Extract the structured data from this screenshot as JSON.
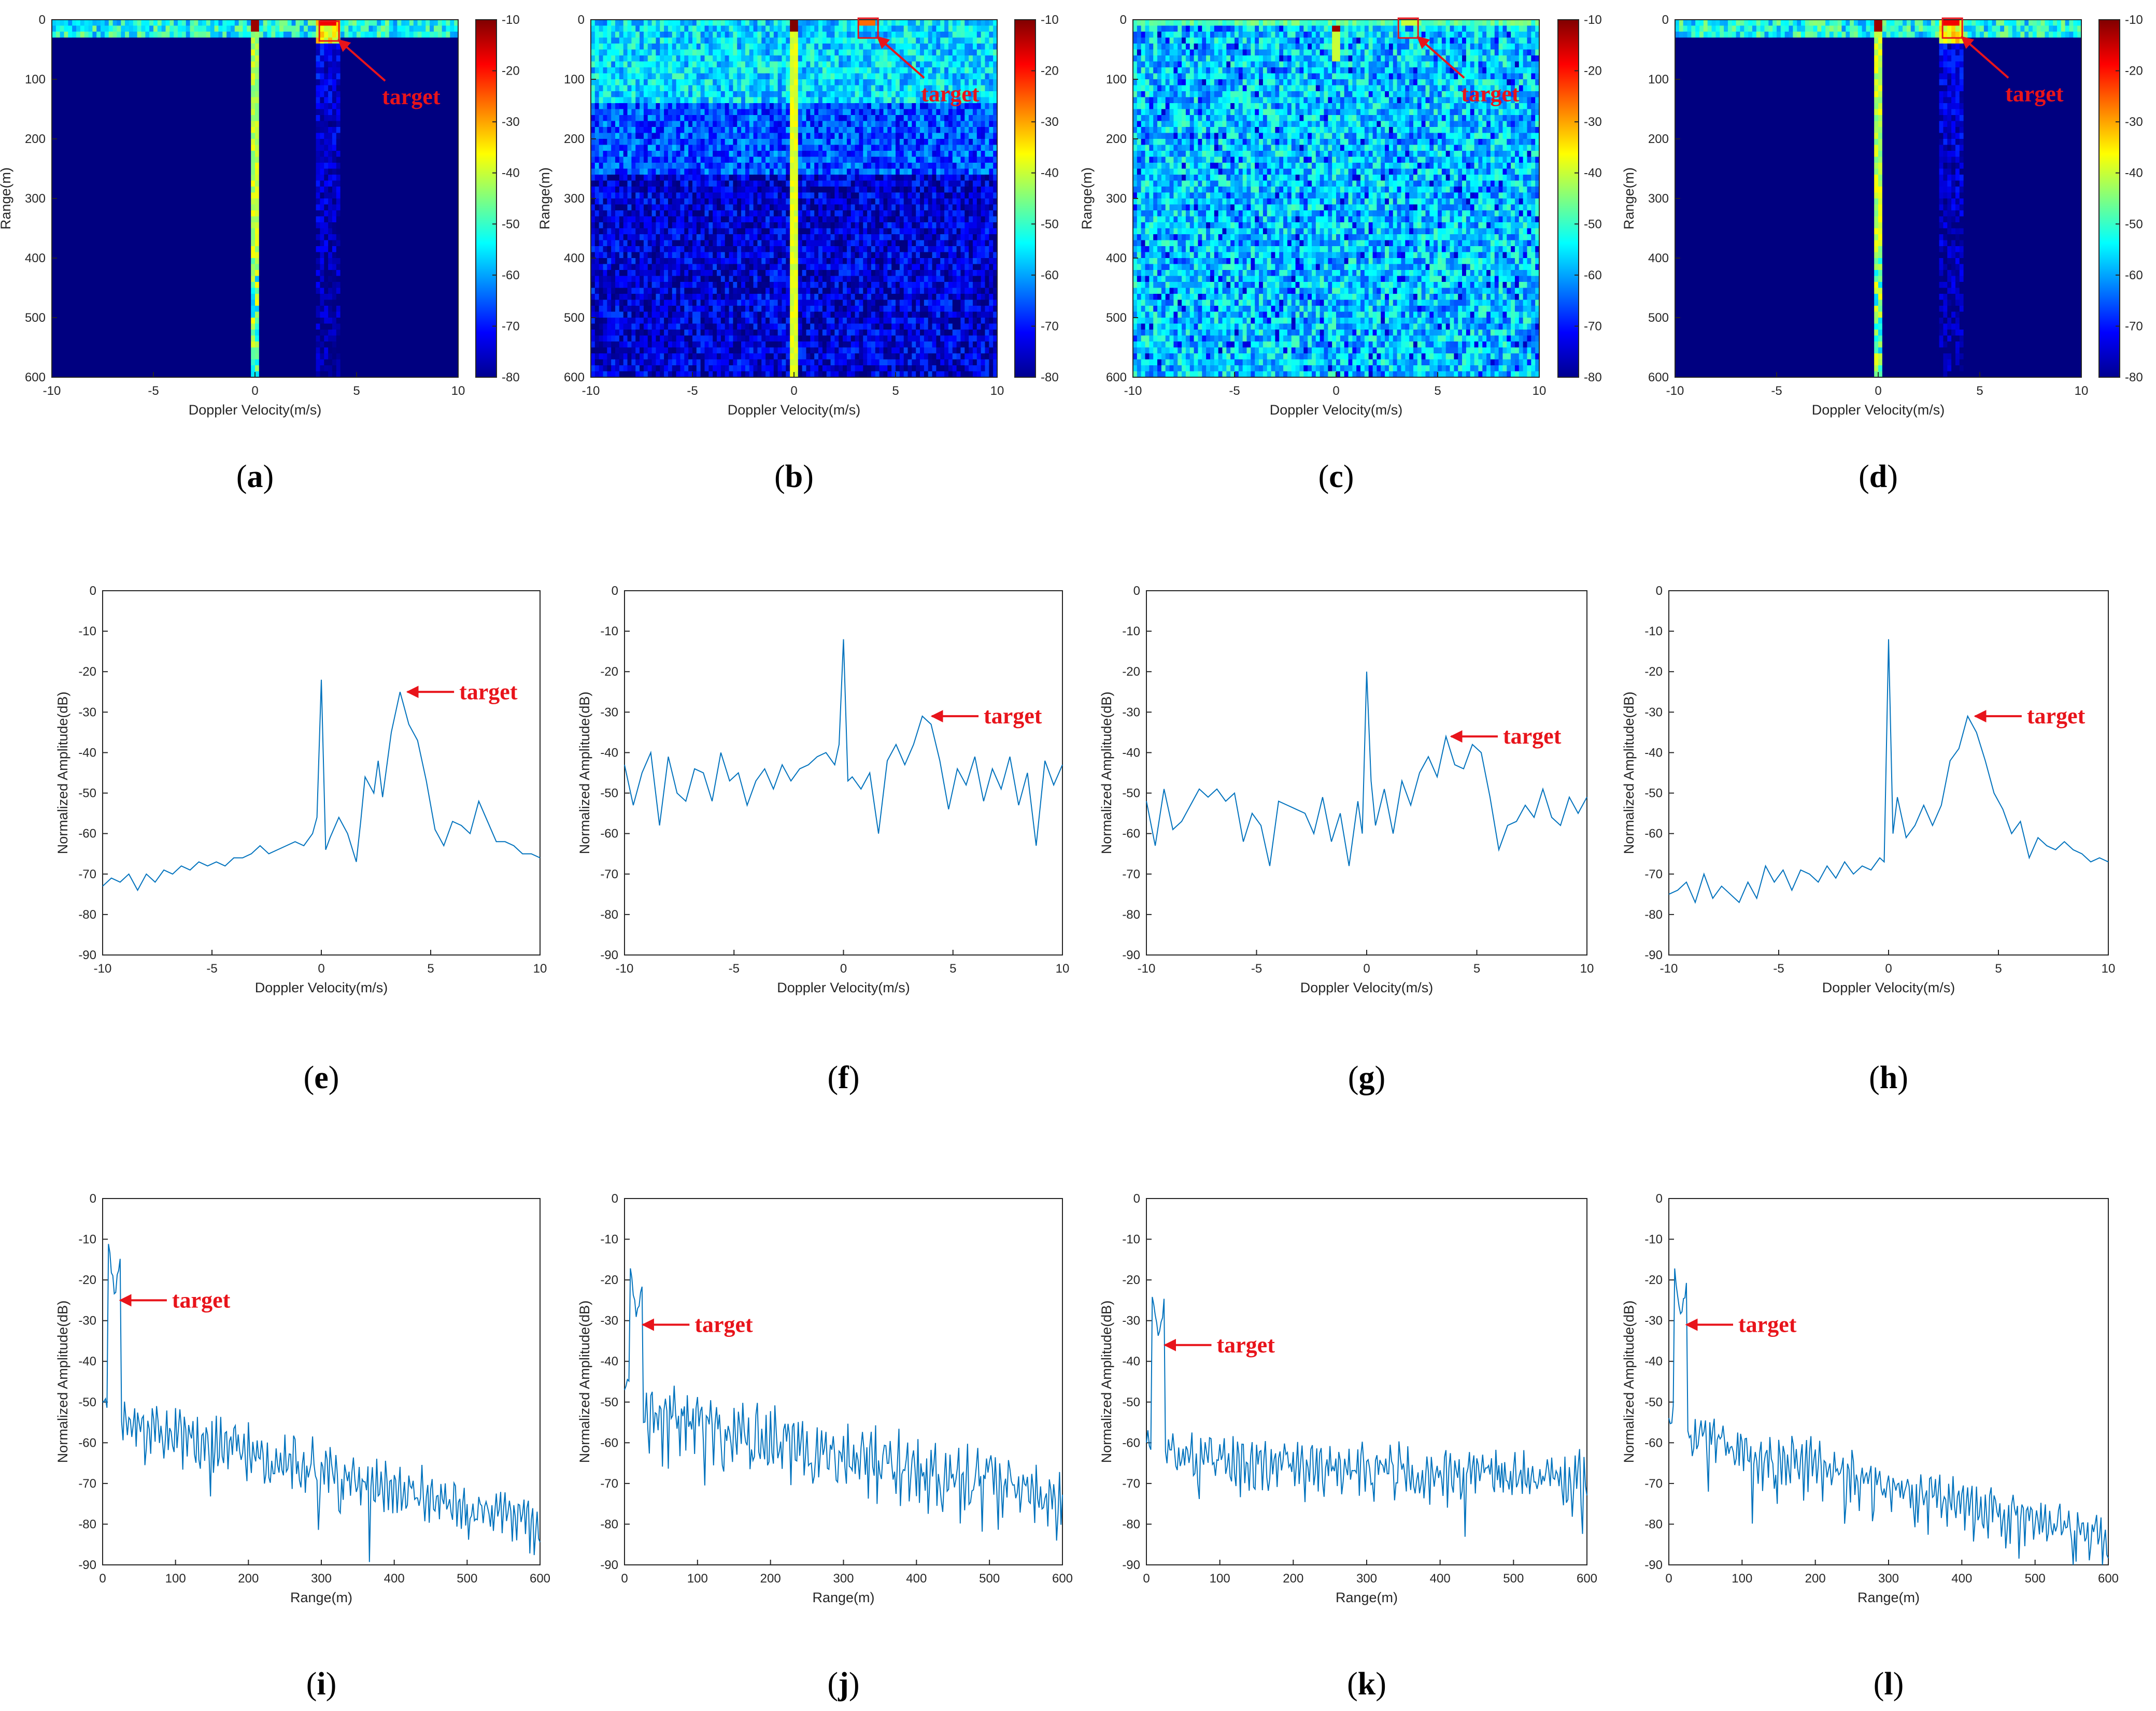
{
  "figure": {
    "target_label": "target",
    "colors": {
      "line": "#0072bd",
      "annotation": "#e8141b",
      "axes": "#262626",
      "background": "#ffffff"
    }
  },
  "chart_data": [
    {
      "id": "a",
      "type": "heatmap",
      "panel": "(a)",
      "caption_letter": "a",
      "variant": "clean",
      "xlabel": "Doppler Velocity(m/s)",
      "ylabel": "Range(m)",
      "xlim": [
        -10,
        10
      ],
      "ylim": [
        600,
        0
      ],
      "xticks": [
        -10,
        -5,
        0,
        5,
        10
      ],
      "yticks": [
        0,
        100,
        200,
        300,
        400,
        500,
        600
      ],
      "colorbar": {
        "ticks": [
          -10,
          -20,
          -30,
          -40,
          -50,
          -60,
          -70,
          -80
        ],
        "range": [
          -80,
          -10
        ]
      },
      "target": {
        "velocity": 3.6,
        "range": 20
      }
    },
    {
      "id": "b",
      "type": "heatmap",
      "panel": "(b)",
      "caption_letter": "b",
      "variant": "clutter",
      "xlabel": "Doppler Velocity(m/s)",
      "ylabel": "Range(m)",
      "xlim": [
        -10,
        10
      ],
      "ylim": [
        600,
        0
      ],
      "xticks": [
        -10,
        -5,
        0,
        5,
        10
      ],
      "yticks": [
        0,
        100,
        200,
        300,
        400,
        500,
        600
      ],
      "colorbar": {
        "ticks": [
          -10,
          -20,
          -30,
          -40,
          -50,
          -60,
          -70,
          -80
        ],
        "range": [
          -80,
          -10
        ]
      },
      "target": {
        "velocity": 3.6,
        "range": 15
      }
    },
    {
      "id": "c",
      "type": "heatmap",
      "panel": "(c)",
      "caption_letter": "c",
      "variant": "noise",
      "xlabel": "Doppler Velocity(m/s)",
      "ylabel": "Range(m)",
      "xlim": [
        -10,
        10
      ],
      "ylim": [
        600,
        0
      ],
      "xticks": [
        -10,
        -5,
        0,
        5,
        10
      ],
      "yticks": [
        0,
        100,
        200,
        300,
        400,
        500,
        600
      ],
      "colorbar": {
        "ticks": [
          -10,
          -20,
          -30,
          -40,
          -50,
          -60,
          -70,
          -80
        ],
        "range": [
          -80,
          -10
        ]
      },
      "target": {
        "velocity": 3.5,
        "range": 15
      }
    },
    {
      "id": "d",
      "type": "heatmap",
      "panel": "(d)",
      "caption_letter": "d",
      "variant": "clean",
      "xlabel": "Doppler Velocity(m/s)",
      "ylabel": "Range(m)",
      "xlim": [
        -10,
        10
      ],
      "ylim": [
        600,
        0
      ],
      "xticks": [
        -10,
        -5,
        0,
        5,
        10
      ],
      "yticks": [
        0,
        100,
        200,
        300,
        400,
        500,
        600
      ],
      "colorbar": {
        "ticks": [
          -10,
          -20,
          -30,
          -40,
          -50,
          -60,
          -70,
          -80
        ],
        "range": [
          -80,
          -10
        ]
      },
      "target": {
        "velocity": 3.6,
        "range": 15
      }
    },
    {
      "id": "e",
      "type": "line",
      "panel": "(e)",
      "caption_letter": "e",
      "xlabel": "Doppler Velocity(m/s)",
      "ylabel": "Normalized Amplitude(dB)",
      "xlim": [
        -10,
        10
      ],
      "ylim": [
        -90,
        0
      ],
      "xticks": [
        -10,
        -5,
        0,
        5,
        10
      ],
      "yticks": [
        0,
        -10,
        -20,
        -30,
        -40,
        -50,
        -60,
        -70,
        -80,
        -90
      ],
      "target": {
        "x": 3.7,
        "y": -25
      },
      "x": [
        -10,
        -9.6,
        -9.2,
        -8.8,
        -8.4,
        -8.0,
        -7.6,
        -7.2,
        -6.8,
        -6.4,
        -6.0,
        -5.6,
        -5.2,
        -4.8,
        -4.4,
        -4.0,
        -3.6,
        -3.2,
        -2.8,
        -2.4,
        -2.0,
        -1.6,
        -1.2,
        -0.8,
        -0.4,
        -0.2,
        0.0,
        0.2,
        0.4,
        0.8,
        1.2,
        1.6,
        1.8,
        2.0,
        2.4,
        2.6,
        2.8,
        3.2,
        3.6,
        3.8,
        4.0,
        4.4,
        4.8,
        5.2,
        5.6,
        6.0,
        6.4,
        6.8,
        7.2,
        7.6,
        8.0,
        8.4,
        8.8,
        9.2,
        9.6,
        10.0
      ],
      "y": [
        -73,
        -71,
        -72,
        -70,
        -74,
        -70,
        -72,
        -69,
        -70,
        -68,
        -69,
        -67,
        -68,
        -67,
        -68,
        -66,
        -66,
        -65,
        -63,
        -65,
        -64,
        -63,
        -62,
        -63,
        -60,
        -56,
        -22,
        -64,
        -61,
        -56,
        -60,
        -67,
        -57,
        -46,
        -50,
        -42,
        -51,
        -35,
        -25,
        -29,
        -33,
        -37,
        -47,
        -59,
        -63,
        -57,
        -58,
        -60,
        -52,
        -57,
        -62,
        -62,
        -63,
        -65,
        -65,
        -66
      ]
    },
    {
      "id": "f",
      "type": "line",
      "panel": "(f)",
      "caption_letter": "f",
      "xlabel": "Doppler Velocity(m/s)",
      "ylabel": "Normalized Amplitude(dB)",
      "xlim": [
        -10,
        10
      ],
      "ylim": [
        -90,
        0
      ],
      "xticks": [
        -10,
        -5,
        0,
        5,
        10
      ],
      "yticks": [
        0,
        -10,
        -20,
        -30,
        -40,
        -50,
        -60,
        -70,
        -80,
        -90
      ],
      "target": {
        "x": 3.8,
        "y": -31
      },
      "x": [
        -10,
        -9.6,
        -9.2,
        -8.8,
        -8.4,
        -8.0,
        -7.6,
        -7.2,
        -6.8,
        -6.4,
        -6.0,
        -5.6,
        -5.2,
        -4.8,
        -4.4,
        -4.0,
        -3.6,
        -3.2,
        -2.8,
        -2.4,
        -2.0,
        -1.6,
        -1.2,
        -0.8,
        -0.4,
        -0.2,
        0.0,
        0.2,
        0.4,
        0.8,
        1.2,
        1.6,
        2.0,
        2.4,
        2.8,
        3.2,
        3.6,
        4.0,
        4.4,
        4.8,
        5.2,
        5.6,
        6.0,
        6.4,
        6.8,
        7.2,
        7.6,
        8.0,
        8.4,
        8.8,
        9.2,
        9.6,
        10.0
      ],
      "y": [
        -43,
        -53,
        -45,
        -40,
        -58,
        -41,
        -50,
        -52,
        -44,
        -45,
        -52,
        -40,
        -47,
        -45,
        -53,
        -47,
        -44,
        -49,
        -43,
        -47,
        -44,
        -43,
        -41,
        -40,
        -43,
        -38,
        -12,
        -47,
        -46,
        -49,
        -45,
        -60,
        -42,
        -38,
        -43,
        -38,
        -31,
        -33,
        -42,
        -54,
        -44,
        -48,
        -41,
        -52,
        -44,
        -49,
        -41,
        -53,
        -45,
        -63,
        -42,
        -48,
        -43
      ]
    },
    {
      "id": "g",
      "type": "line",
      "panel": "(g)",
      "caption_letter": "g",
      "xlabel": "Doppler Velocity(m/s)",
      "ylabel": "Normalized Amplitude(dB)",
      "xlim": [
        -10,
        10
      ],
      "ylim": [
        -90,
        0
      ],
      "xticks": [
        -10,
        -5,
        0,
        5,
        10
      ],
      "yticks": [
        0,
        -10,
        -20,
        -30,
        -40,
        -50,
        -60,
        -70,
        -80,
        -90
      ],
      "target": {
        "x": 3.6,
        "y": -36
      },
      "x": [
        -10,
        -9.6,
        -9.2,
        -8.8,
        -8.4,
        -8.0,
        -7.6,
        -7.2,
        -6.8,
        -6.4,
        -6.0,
        -5.6,
        -5.2,
        -4.8,
        -4.4,
        -4.0,
        -3.6,
        -3.2,
        -2.8,
        -2.4,
        -2.0,
        -1.6,
        -1.2,
        -0.8,
        -0.4,
        -0.2,
        0.0,
        0.2,
        0.4,
        0.8,
        1.2,
        1.6,
        2.0,
        2.4,
        2.8,
        3.2,
        3.6,
        4.0,
        4.4,
        4.8,
        5.2,
        5.6,
        6.0,
        6.4,
        6.8,
        7.2,
        7.6,
        8.0,
        8.4,
        8.8,
        9.2,
        9.6,
        10.0
      ],
      "y": [
        -52,
        -63,
        -49,
        -59,
        -57,
        -53,
        -49,
        -51,
        -49,
        -52,
        -50,
        -62,
        -55,
        -58,
        -68,
        -52,
        -53,
        -54,
        -55,
        -60,
        -51,
        -62,
        -55,
        -68,
        -52,
        -60,
        -20,
        -47,
        -58,
        -49,
        -60,
        -47,
        -53,
        -45,
        -41,
        -46,
        -36,
        -43,
        -44,
        -38,
        -40,
        -51,
        -64,
        -58,
        -57,
        -53,
        -56,
        -49,
        -56,
        -58,
        -51,
        -55,
        -51
      ]
    },
    {
      "id": "h",
      "type": "line",
      "panel": "(h)",
      "caption_letter": "h",
      "xlabel": "Doppler Velocity(m/s)",
      "ylabel": "Normalized Amplitude(dB)",
      "xlim": [
        -10,
        10
      ],
      "ylim": [
        -90,
        0
      ],
      "xticks": [
        -10,
        -5,
        0,
        5,
        10
      ],
      "yticks": [
        0,
        -10,
        -20,
        -30,
        -40,
        -50,
        -60,
        -70,
        -80,
        -90
      ],
      "target": {
        "x": 3.7,
        "y": -31
      },
      "x": [
        -10,
        -9.6,
        -9.2,
        -8.8,
        -8.4,
        -8.0,
        -7.6,
        -7.2,
        -6.8,
        -6.4,
        -6.0,
        -5.6,
        -5.2,
        -4.8,
        -4.4,
        -4.0,
        -3.6,
        -3.2,
        -2.8,
        -2.4,
        -2.0,
        -1.6,
        -1.2,
        -0.8,
        -0.4,
        -0.2,
        0.0,
        0.2,
        0.4,
        0.8,
        1.2,
        1.6,
        2.0,
        2.4,
        2.8,
        3.2,
        3.6,
        4.0,
        4.4,
        4.8,
        5.2,
        5.6,
        6.0,
        6.4,
        6.8,
        7.2,
        7.6,
        8.0,
        8.4,
        8.8,
        9.2,
        9.6,
        10.0
      ],
      "y": [
        -75,
        -74,
        -72,
        -77,
        -70,
        -76,
        -73,
        -75,
        -77,
        -72,
        -76,
        -68,
        -72,
        -69,
        -74,
        -69,
        -70,
        -72,
        -68,
        -71,
        -67,
        -70,
        -68,
        -69,
        -66,
        -67,
        -12,
        -60,
        -51,
        -61,
        -58,
        -53,
        -58,
        -53,
        -42,
        -39,
        -31,
        -35,
        -42,
        -50,
        -54,
        -60,
        -57,
        -66,
        -61,
        -63,
        -64,
        -62,
        -64,
        -65,
        -67,
        -66,
        -67
      ]
    },
    {
      "id": "i",
      "type": "line",
      "panel": "(i)",
      "caption_letter": "i",
      "xlabel": "Range(m)",
      "ylabel": "Normalized Amplitude(dB)",
      "xlim": [
        0,
        600
      ],
      "ylim": [
        -90,
        0
      ],
      "xticks": [
        0,
        100,
        200,
        300,
        400,
        500,
        600
      ],
      "yticks": [
        0,
        -10,
        -20,
        -30,
        -40,
        -50,
        -60,
        -70,
        -80,
        -90
      ],
      "target": {
        "x": 17,
        "y": -25
      },
      "model": {
        "peak": -25,
        "floor": -48,
        "decay": -0.045,
        "far": -78,
        "ripple": 10,
        "seed": 11
      }
    },
    {
      "id": "j",
      "type": "line",
      "panel": "(j)",
      "caption_letter": "j",
      "xlabel": "Range(m)",
      "ylabel": "Normalized Amplitude(dB)",
      "xlim": [
        0,
        600
      ],
      "ylim": [
        -90,
        0
      ],
      "xticks": [
        0,
        100,
        200,
        300,
        400,
        500,
        600
      ],
      "yticks": [
        0,
        -10,
        -20,
        -30,
        -40,
        -50,
        -60,
        -70,
        -80,
        -90
      ],
      "target": {
        "x": 18,
        "y": -31
      },
      "model": {
        "peak": -31,
        "floor": -45,
        "decay": -0.035,
        "far": -75,
        "ripple": 13,
        "seed": 23
      }
    },
    {
      "id": "k",
      "type": "line",
      "panel": "(k)",
      "caption_letter": "k",
      "xlabel": "Range(m)",
      "ylabel": "Normalized Amplitude(dB)",
      "xlim": [
        0,
        600
      ],
      "ylim": [
        -90,
        0
      ],
      "xticks": [
        0,
        100,
        200,
        300,
        400,
        500,
        600
      ],
      "yticks": [
        0,
        -10,
        -20,
        -30,
        -40,
        -50,
        -60,
        -70,
        -80,
        -90
      ],
      "target": {
        "x": 18,
        "y": -36
      },
      "model": {
        "peak": -36,
        "floor": -58,
        "decay": -0.008,
        "far": -63,
        "ripple": 10,
        "seed": 37
      }
    },
    {
      "id": "l",
      "type": "line",
      "panel": "(l)",
      "caption_letter": "l",
      "xlabel": "Range(m)",
      "ylabel": "Normalized Amplitude(dB)",
      "xlim": [
        0,
        600
      ],
      "ylim": [
        -90,
        0
      ],
      "xticks": [
        0,
        100,
        200,
        300,
        400,
        500,
        600
      ],
      "yticks": [
        0,
        -10,
        -20,
        -30,
        -40,
        -50,
        -60,
        -70,
        -80,
        -90
      ],
      "target": {
        "x": 17,
        "y": -31
      },
      "model": {
        "peak": -31,
        "floor": -52,
        "decay": -0.045,
        "far": -82,
        "ripple": 10,
        "seed": 53
      }
    }
  ]
}
